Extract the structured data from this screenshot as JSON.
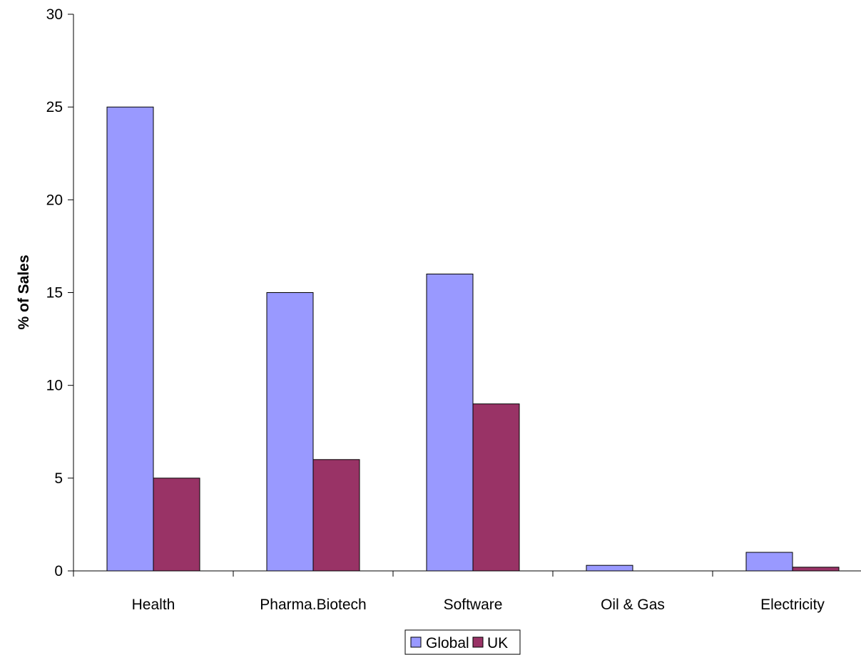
{
  "chart_data": {
    "type": "bar",
    "categories": [
      "Health",
      "Pharma.Biotech",
      "Software",
      "Oil & Gas",
      "Electricity"
    ],
    "series": [
      {
        "name": "Global",
        "values": [
          25,
          15,
          16,
          0.3,
          1.0
        ],
        "color": "#9999ff"
      },
      {
        "name": "UK",
        "values": [
          5,
          6,
          9,
          0,
          0.2
        ],
        "color": "#993366"
      }
    ],
    "title": "",
    "xlabel": "",
    "ylabel": "% of Sales",
    "ylim": [
      0,
      30
    ],
    "yticks": [
      0,
      5,
      10,
      15,
      20,
      25,
      30
    ],
    "grid": false,
    "legend": "bottom"
  }
}
